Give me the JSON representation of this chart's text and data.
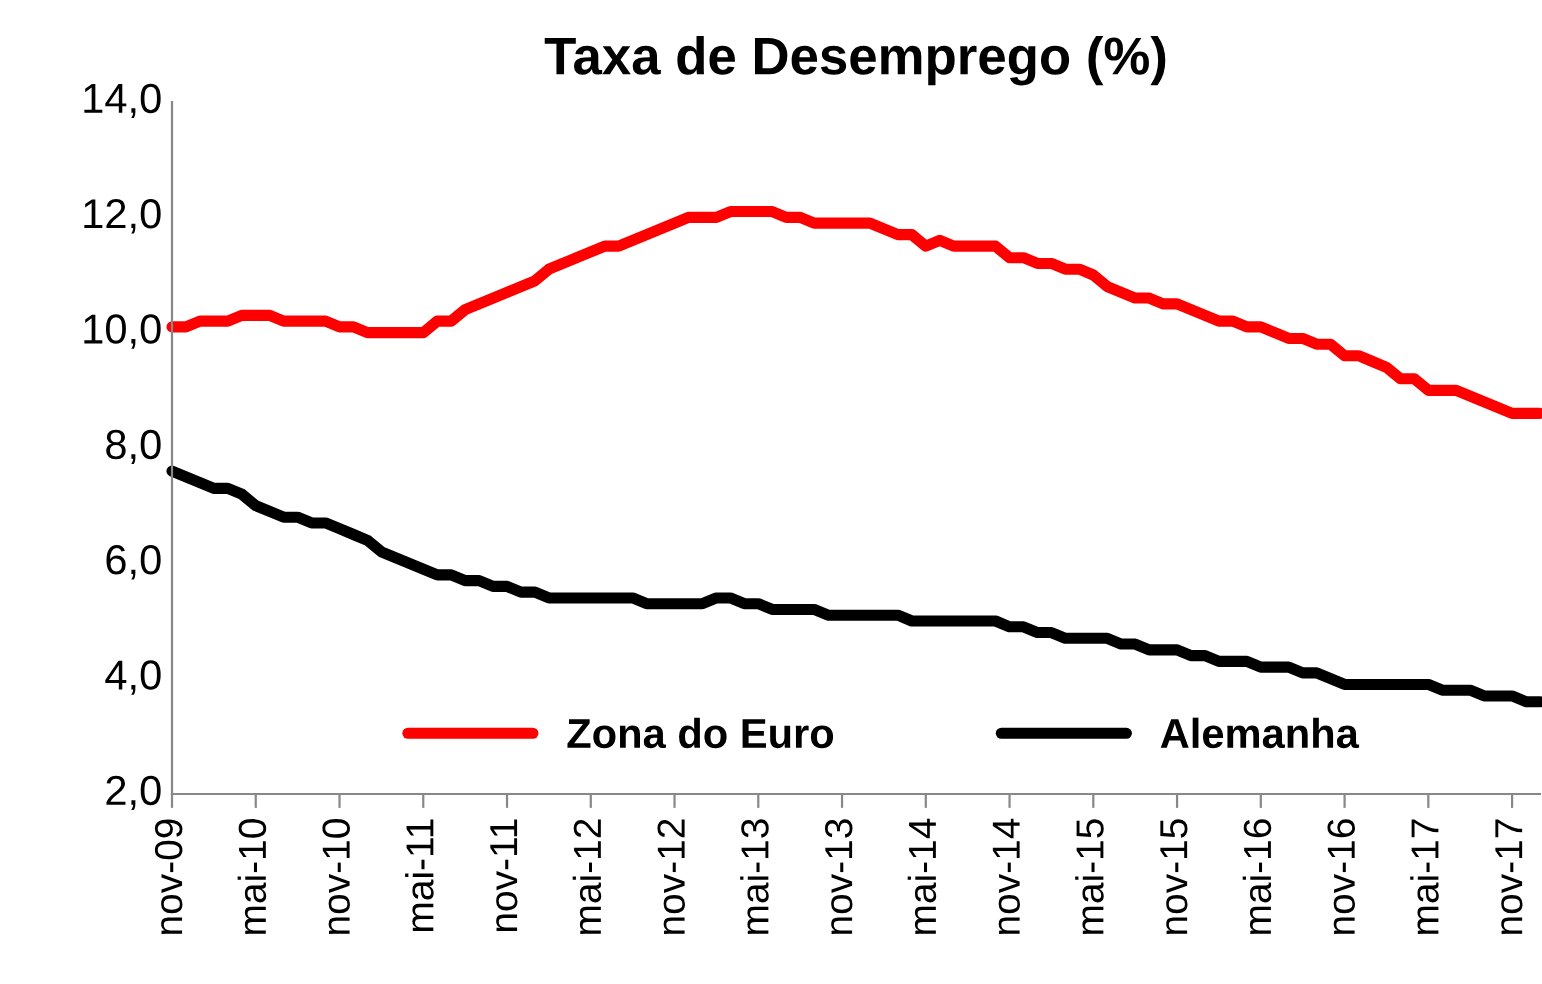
{
  "chart_data": {
    "type": "line",
    "title": "Taxa de Desemprego (%)",
    "categories": [
      "nov-09",
      null,
      null,
      null,
      null,
      null,
      "mai-10",
      null,
      null,
      null,
      null,
      null,
      "nov-10",
      null,
      null,
      null,
      null,
      null,
      "mai-11",
      null,
      null,
      null,
      null,
      null,
      "nov-11",
      null,
      null,
      null,
      null,
      null,
      "mai-12",
      null,
      null,
      null,
      null,
      null,
      "nov-12",
      null,
      null,
      null,
      null,
      null,
      "mai-13",
      null,
      null,
      null,
      null,
      null,
      "nov-13",
      null,
      null,
      null,
      null,
      null,
      "mai-14",
      null,
      null,
      null,
      null,
      null,
      "nov-14",
      null,
      null,
      null,
      null,
      null,
      "mai-15",
      null,
      null,
      null,
      null,
      null,
      "nov-15",
      null,
      null,
      null,
      null,
      null,
      "mai-16",
      null,
      null,
      null,
      null,
      null,
      "nov-16",
      null,
      null,
      null,
      null,
      null,
      "mai-17",
      null,
      null,
      null,
      null,
      null,
      "nov-17",
      null,
      null
    ],
    "series": [
      {
        "name": "Zona do Euro",
        "color": "#ff0000",
        "values": [
          10.1,
          10.1,
          10.2,
          10.2,
          10.2,
          10.3,
          10.3,
          10.3,
          10.2,
          10.2,
          10.2,
          10.2,
          10.1,
          10.1,
          10.0,
          10.0,
          10.0,
          10.0,
          10.0,
          10.2,
          10.2,
          10.4,
          10.5,
          10.6,
          10.7,
          10.8,
          10.9,
          11.1,
          11.2,
          11.3,
          11.4,
          11.5,
          11.5,
          11.6,
          11.7,
          11.8,
          11.9,
          12.0,
          12.0,
          12.0,
          12.1,
          12.1,
          12.1,
          12.1,
          12.0,
          12.0,
          11.9,
          11.9,
          11.9,
          11.9,
          11.9,
          11.8,
          11.7,
          11.7,
          11.5,
          11.6,
          11.5,
          11.5,
          11.5,
          11.5,
          11.3,
          11.3,
          11.2,
          11.2,
          11.1,
          11.1,
          11.0,
          10.8,
          10.7,
          10.6,
          10.6,
          10.5,
          10.5,
          10.4,
          10.3,
          10.2,
          10.2,
          10.1,
          10.1,
          10.0,
          9.9,
          9.9,
          9.8,
          9.8,
          9.6,
          9.6,
          9.5,
          9.4,
          9.2,
          9.2,
          9.0,
          9.0,
          9.0,
          8.9,
          8.8,
          8.7,
          8.6,
          8.6,
          8.6
        ]
      },
      {
        "name": "Alemanha",
        "color": "#000000",
        "values": [
          7.6,
          7.5,
          7.4,
          7.3,
          7.3,
          7.2,
          7.0,
          6.9,
          6.8,
          6.8,
          6.7,
          6.7,
          6.6,
          6.5,
          6.4,
          6.2,
          6.1,
          6.0,
          5.9,
          5.8,
          5.8,
          5.7,
          5.7,
          5.6,
          5.6,
          5.5,
          5.5,
          5.4,
          5.4,
          5.4,
          5.4,
          5.4,
          5.4,
          5.4,
          5.3,
          5.3,
          5.3,
          5.3,
          5.3,
          5.4,
          5.4,
          5.3,
          5.3,
          5.2,
          5.2,
          5.2,
          5.2,
          5.1,
          5.1,
          5.1,
          5.1,
          5.1,
          5.1,
          5.0,
          5.0,
          5.0,
          5.0,
          5.0,
          5.0,
          5.0,
          4.9,
          4.9,
          4.8,
          4.8,
          4.7,
          4.7,
          4.7,
          4.7,
          4.6,
          4.6,
          4.5,
          4.5,
          4.5,
          4.4,
          4.4,
          4.3,
          4.3,
          4.3,
          4.2,
          4.2,
          4.2,
          4.1,
          4.1,
          4.0,
          3.9,
          3.9,
          3.9,
          3.9,
          3.9,
          3.9,
          3.9,
          3.8,
          3.8,
          3.8,
          3.7,
          3.7,
          3.7,
          3.6,
          3.6
        ]
      }
    ],
    "ylim": [
      2,
      14
    ],
    "yticks": [
      {
        "value": 2,
        "label": "2,0"
      },
      {
        "value": 4,
        "label": "4,0"
      },
      {
        "value": 6,
        "label": "6,0"
      },
      {
        "value": 8,
        "label": "8,0"
      },
      {
        "value": 10,
        "label": "10,0"
      },
      {
        "value": 12,
        "label": "12,0"
      },
      {
        "value": 14,
        "label": "14,0"
      }
    ],
    "grid": false,
    "legend": "bottom",
    "marker": "none",
    "line_style": "solid"
  }
}
